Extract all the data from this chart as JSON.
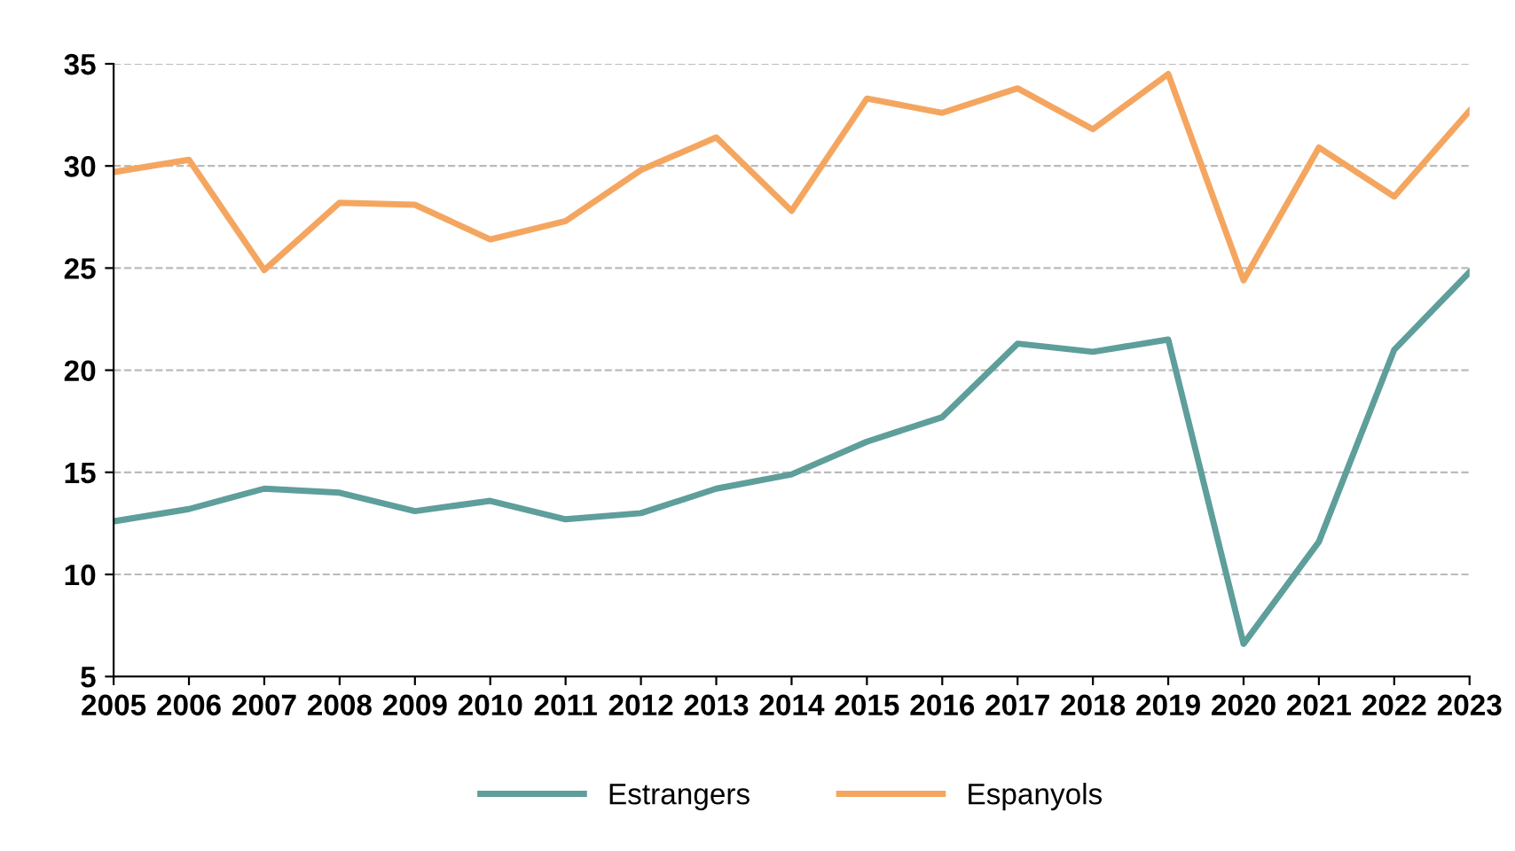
{
  "chart_data": {
    "type": "line",
    "categories": [
      "2005",
      "2006",
      "2007",
      "2008",
      "2009",
      "2010",
      "2011",
      "2012",
      "2013",
      "2014",
      "2015",
      "2016",
      "2017",
      "2018",
      "2019",
      "2020",
      "2021",
      "2022",
      "2023"
    ],
    "series": [
      {
        "name": "Estrangers",
        "color": "#5e9e9b",
        "values": [
          12.6,
          13.2,
          14.2,
          14.0,
          13.1,
          13.6,
          12.7,
          13.0,
          14.2,
          14.9,
          16.5,
          17.7,
          21.3,
          20.9,
          21.5,
          6.6,
          11.6,
          21.0,
          24.8
        ]
      },
      {
        "name": "Espanyols",
        "color": "#f4a660",
        "values": [
          29.7,
          30.3,
          24.9,
          28.2,
          28.1,
          26.4,
          27.3,
          29.8,
          31.4,
          27.8,
          33.3,
          32.6,
          33.8,
          31.8,
          34.5,
          24.4,
          30.9,
          28.5,
          32.7
        ]
      }
    ],
    "ylim": [
      5,
      35
    ],
    "yticks": [
      5,
      10,
      15,
      20,
      25,
      30,
      35
    ],
    "grid": "y",
    "legend": "bottom",
    "marker": "none",
    "line_style": "solid"
  }
}
